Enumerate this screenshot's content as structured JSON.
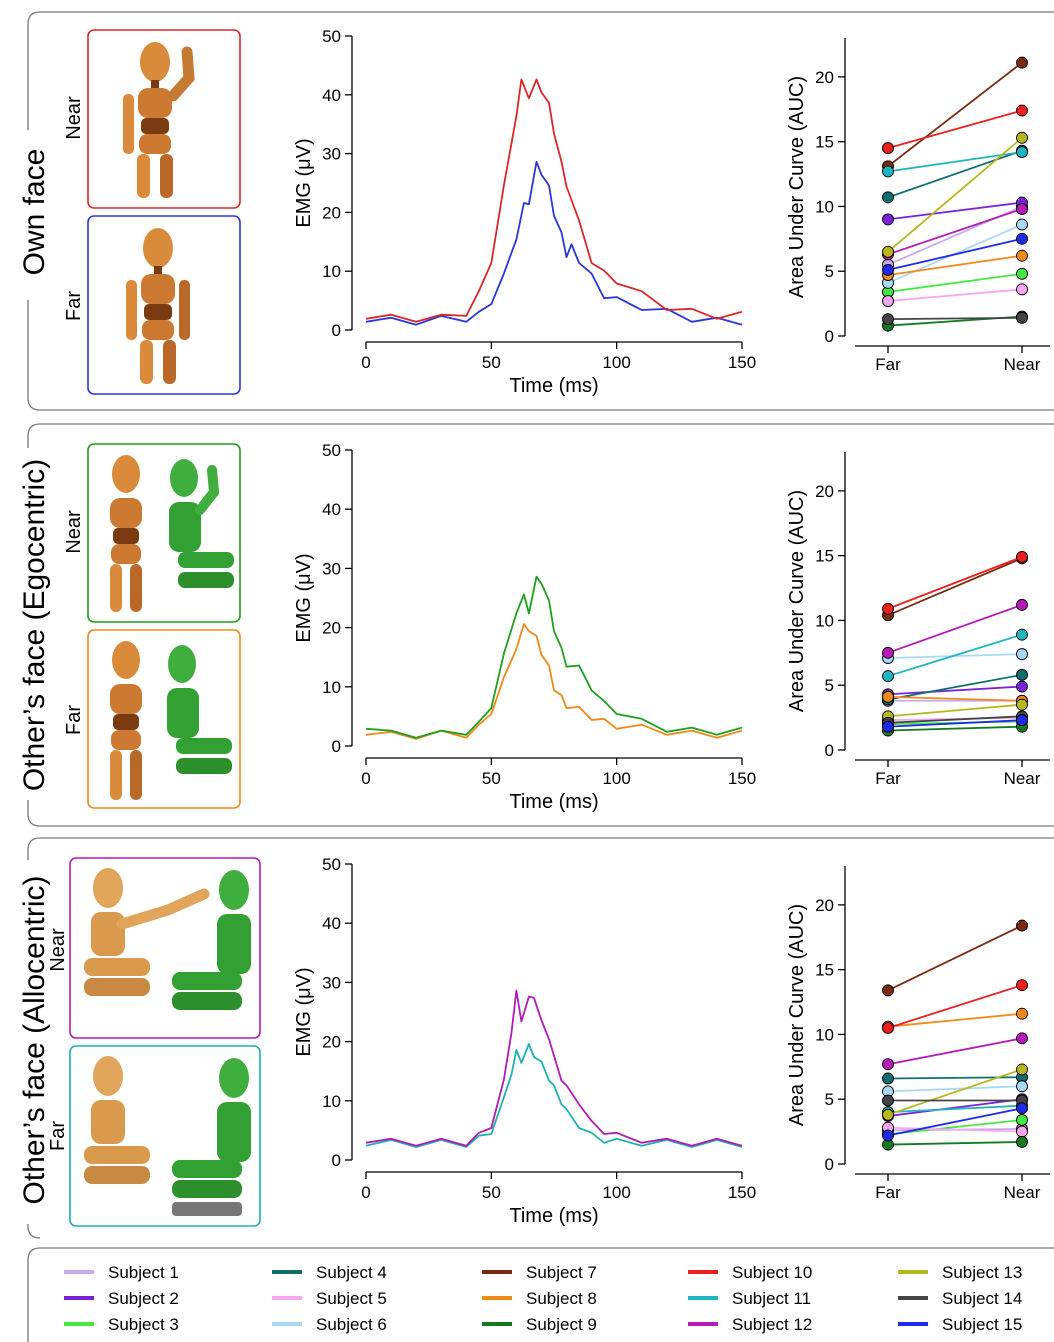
{
  "top_caption": "",
  "panels": [
    {
      "title": "Own face",
      "near_label": "Near",
      "far_label": "Far",
      "near_color": "#d9262b",
      "far_color": "#2b35d8"
    },
    {
      "title": "Other’s face (Egocentric)",
      "near_label": "Near",
      "far_label": "Far",
      "near_color": "#1f9e1f",
      "far_color": "#f0881a"
    },
    {
      "title": "Other’s face (Allocentric)",
      "near_label": "Near",
      "far_label": "Far",
      "near_color": "#b21ab8",
      "far_color": "#1fb0b0"
    }
  ],
  "legend": {
    "items": [
      {
        "label": "Subject 1",
        "color": "#c9aaea"
      },
      {
        "label": "Subject 2",
        "color": "#7a22d6"
      },
      {
        "label": "Subject 3",
        "color": "#44e844"
      },
      {
        "label": "Subject 4",
        "color": "#116e6e"
      },
      {
        "label": "Subject 5",
        "color": "#f7a6f0"
      },
      {
        "label": "Subject 6",
        "color": "#a9d8f5"
      },
      {
        "label": "Subject 7",
        "color": "#7a2a10"
      },
      {
        "label": "Subject 8",
        "color": "#f08a1a"
      },
      {
        "label": "Subject 9",
        "color": "#137a1f"
      },
      {
        "label": "Subject 10",
        "color": "#ee1f1f"
      },
      {
        "label": "Subject 11",
        "color": "#1fb5c0"
      },
      {
        "label": "Subject 12",
        "color": "#b61ab8"
      },
      {
        "label": "Subject 13",
        "color": "#b8b71f"
      },
      {
        "label": "Subject 14",
        "color": "#444444"
      },
      {
        "label": "Subject 15",
        "color": "#1f2be8"
      }
    ]
  },
  "chart_data": [
    {
      "type": "line",
      "panel": "Own face",
      "xlabel": "Time (ms)",
      "ylabel": "EMG (μV)",
      "xlim": [
        0,
        150
      ],
      "ylim": [
        0,
        50
      ],
      "xticks": [
        "0",
        "50",
        "100",
        "150"
      ],
      "yticks": [
        "0",
        "10",
        "20",
        "30",
        "40",
        "50"
      ],
      "series": [
        {
          "name": "Near",
          "color": "#d9262b",
          "x": [
            0,
            10,
            20,
            30,
            40,
            45,
            50,
            55,
            60,
            62,
            65,
            68,
            70,
            73,
            75,
            78,
            80,
            85,
            90,
            95,
            100,
            110,
            120,
            130,
            140,
            150
          ],
          "y": [
            2.5,
            2.0,
            2.0,
            2.0,
            3.0,
            6,
            12,
            24,
            37,
            42,
            40,
            42,
            41,
            38,
            34,
            28,
            25,
            18,
            12,
            9.5,
            8.5,
            6,
            4,
            3,
            2.5,
            2.5
          ]
        },
        {
          "name": "Far",
          "color": "#2b35d8",
          "x": [
            0,
            10,
            20,
            30,
            40,
            45,
            50,
            55,
            60,
            63,
            65,
            68,
            70,
            73,
            75,
            78,
            80,
            82,
            85,
            90,
            95,
            100,
            110,
            120,
            130,
            140,
            150
          ],
          "y": [
            2.0,
            1.5,
            1.5,
            1.8,
            2.0,
            2.5,
            5,
            9,
            16,
            21,
            22,
            28,
            27,
            24,
            20,
            16,
            13,
            14,
            12,
            9,
            6,
            5,
            4,
            3,
            2,
            1.5,
            1.5
          ]
        }
      ]
    },
    {
      "type": "line",
      "panel": "Own face",
      "xlabel": "",
      "ylabel": "Area Under Curve (AUC)",
      "categories": [
        "Far",
        "Near"
      ],
      "ylim": [
        0,
        23
      ],
      "yticks": [
        "0",
        "5",
        "10",
        "15",
        "20"
      ],
      "series": [
        {
          "name": "Subject 1",
          "values": [
            5.5,
            10.0
          ]
        },
        {
          "name": "Subject 2",
          "values": [
            9.0,
            10.3
          ]
        },
        {
          "name": "Subject 3",
          "values": [
            3.4,
            4.8
          ]
        },
        {
          "name": "Subject 4",
          "values": [
            10.7,
            14.3
          ]
        },
        {
          "name": "Subject 5",
          "values": [
            2.7,
            3.6
          ]
        },
        {
          "name": "Subject 6",
          "values": [
            4.1,
            8.6
          ]
        },
        {
          "name": "Subject 7",
          "values": [
            13.1,
            21.1
          ]
        },
        {
          "name": "Subject 8",
          "values": [
            4.7,
            6.2
          ]
        },
        {
          "name": "Subject 9",
          "values": [
            0.8,
            1.5
          ]
        },
        {
          "name": "Subject 10",
          "values": [
            14.5,
            17.4
          ]
        },
        {
          "name": "Subject 11",
          "values": [
            12.7,
            14.2
          ]
        },
        {
          "name": "Subject 12",
          "values": [
            6.3,
            9.8
          ]
        },
        {
          "name": "Subject 13",
          "values": [
            6.5,
            15.3
          ]
        },
        {
          "name": "Subject 14",
          "values": [
            1.3,
            1.4
          ]
        },
        {
          "name": "Subject 15",
          "values": [
            5.1,
            7.5
          ]
        }
      ]
    },
    {
      "type": "line",
      "panel": "Other’s face (Egocentric)",
      "xlabel": "Time (ms)",
      "ylabel": "EMG (μV)",
      "xlim": [
        0,
        150
      ],
      "ylim": [
        0,
        50
      ],
      "xticks": [
        "0",
        "50",
        "100",
        "150"
      ],
      "yticks": [
        "0",
        "10",
        "20",
        "30",
        "40",
        "50"
      ],
      "series": [
        {
          "name": "Near",
          "color": "#1f9e1f",
          "x": [
            0,
            10,
            20,
            30,
            40,
            45,
            50,
            55,
            60,
            63,
            65,
            68,
            70,
            73,
            75,
            78,
            80,
            85,
            90,
            95,
            100,
            110,
            120,
            130,
            140,
            150
          ],
          "y": [
            3.5,
            2.0,
            2.0,
            2.0,
            2.5,
            3.5,
            7,
            15,
            23,
            25,
            23,
            28,
            28,
            24,
            20,
            16,
            14,
            13,
            10,
            7,
            6,
            4,
            3,
            2.5,
            2.5,
            2.5
          ]
        },
        {
          "name": "Far",
          "color": "#f0881a",
          "x": [
            0,
            10,
            20,
            30,
            40,
            45,
            50,
            55,
            60,
            63,
            65,
            68,
            70,
            73,
            75,
            78,
            80,
            85,
            90,
            95,
            100,
            110,
            120,
            130,
            140,
            150
          ],
          "y": [
            2.5,
            1.8,
            1.8,
            2.0,
            2.0,
            3.0,
            6,
            11,
            17,
            20,
            20,
            18,
            16,
            13,
            10,
            8,
            7,
            6,
            5,
            4,
            3.5,
            3,
            2.5,
            2,
            2,
            2
          ]
        }
      ]
    },
    {
      "type": "line",
      "panel": "Other’s face (Egocentric)",
      "xlabel": "",
      "ylabel": "Area Under Curve (AUC)",
      "categories": [
        "Far",
        "Near"
      ],
      "ylim": [
        0,
        23
      ],
      "yticks": [
        "0",
        "5",
        "10",
        "15",
        "20"
      ],
      "series": [
        {
          "name": "Subject 1",
          "values": [
            3.8,
            3.8
          ]
        },
        {
          "name": "Subject 2",
          "values": [
            4.3,
            4.9
          ]
        },
        {
          "name": "Subject 3",
          "values": [
            2.0,
            2.2
          ]
        },
        {
          "name": "Subject 4",
          "values": [
            3.9,
            5.8
          ]
        },
        {
          "name": "Subject 5",
          "values": [
            2.3,
            2.5
          ]
        },
        {
          "name": "Subject 6",
          "values": [
            7.1,
            7.4
          ]
        },
        {
          "name": "Subject 7",
          "values": [
            10.4,
            14.8
          ]
        },
        {
          "name": "Subject 8",
          "values": [
            4.1,
            3.8
          ]
        },
        {
          "name": "Subject 9",
          "values": [
            1.5,
            1.8
          ]
        },
        {
          "name": "Subject 10",
          "values": [
            10.9,
            14.9
          ]
        },
        {
          "name": "Subject 11",
          "values": [
            5.7,
            8.9
          ]
        },
        {
          "name": "Subject 12",
          "values": [
            7.5,
            11.2
          ]
        },
        {
          "name": "Subject 13",
          "values": [
            2.6,
            3.5
          ]
        },
        {
          "name": "Subject 14",
          "values": [
            2.1,
            2.6
          ]
        },
        {
          "name": "Subject 15",
          "values": [
            1.8,
            2.3
          ]
        }
      ]
    },
    {
      "type": "line",
      "panel": "Other’s face (Allocentric)",
      "xlabel": "Time (ms)",
      "ylabel": "EMG (μV)",
      "xlim": [
        0,
        150
      ],
      "ylim": [
        0,
        50
      ],
      "xticks": [
        "0",
        "50",
        "100",
        "150"
      ],
      "yticks": [
        "0",
        "10",
        "20",
        "30",
        "40",
        "50"
      ],
      "series": [
        {
          "name": "Near",
          "color": "#b21ab8",
          "x": [
            0,
            10,
            20,
            30,
            40,
            45,
            50,
            55,
            58,
            60,
            62,
            65,
            67,
            70,
            73,
            75,
            78,
            80,
            85,
            90,
            95,
            100,
            110,
            120,
            130,
            140,
            150
          ],
          "y": [
            3.5,
            3.0,
            3.0,
            3.0,
            3.0,
            4,
            6,
            13,
            22,
            28,
            24,
            27,
            28,
            23,
            21,
            17,
            14,
            12,
            10,
            6,
            5,
            4,
            3.5,
            3,
            3,
            3,
            3
          ]
        },
        {
          "name": "Far",
          "color": "#1fb0b0",
          "x": [
            0,
            10,
            20,
            30,
            40,
            45,
            50,
            55,
            58,
            60,
            62,
            65,
            67,
            70,
            73,
            75,
            78,
            80,
            85,
            90,
            95,
            100,
            110,
            120,
            130,
            140,
            150
          ],
          "y": [
            3.0,
            2.8,
            2.8,
            2.8,
            2.8,
            3.5,
            5,
            10,
            15,
            18,
            17,
            19,
            18,
            16,
            14,
            12,
            10,
            8,
            6,
            4,
            3.5,
            3,
            3,
            2.8,
            2.8,
            2.8,
            2.8
          ]
        }
      ]
    },
    {
      "type": "line",
      "panel": "Other’s face (Allocentric)",
      "xlabel": "",
      "ylabel": "Area Under Curve (AUC)",
      "categories": [
        "Far",
        "Near"
      ],
      "ylim": [
        0,
        23
      ],
      "yticks": [
        "0",
        "5",
        "10",
        "15",
        "20"
      ],
      "series": [
        {
          "name": "Subject 1",
          "values": [
            2.6,
            2.7
          ]
        },
        {
          "name": "Subject 2",
          "values": [
            3.7,
            5.0
          ]
        },
        {
          "name": "Subject 3",
          "values": [
            2.3,
            3.4
          ]
        },
        {
          "name": "Subject 4",
          "values": [
            6.6,
            6.7
          ]
        },
        {
          "name": "Subject 5",
          "values": [
            2.8,
            2.5
          ]
        },
        {
          "name": "Subject 6",
          "values": [
            5.6,
            6.0
          ]
        },
        {
          "name": "Subject 7",
          "values": [
            13.4,
            18.4
          ]
        },
        {
          "name": "Subject 8",
          "values": [
            10.6,
            11.6
          ]
        },
        {
          "name": "Subject 9",
          "values": [
            1.5,
            1.7
          ]
        },
        {
          "name": "Subject 10",
          "values": [
            10.5,
            13.8
          ]
        },
        {
          "name": "Subject 11",
          "values": [
            4.0,
            4.5
          ]
        },
        {
          "name": "Subject 12",
          "values": [
            7.7,
            9.7
          ]
        },
        {
          "name": "Subject 13",
          "values": [
            3.8,
            7.3
          ]
        },
        {
          "name": "Subject 14",
          "values": [
            4.9,
            4.9
          ]
        },
        {
          "name": "Subject 15",
          "values": [
            2.2,
            4.3
          ]
        }
      ]
    }
  ]
}
